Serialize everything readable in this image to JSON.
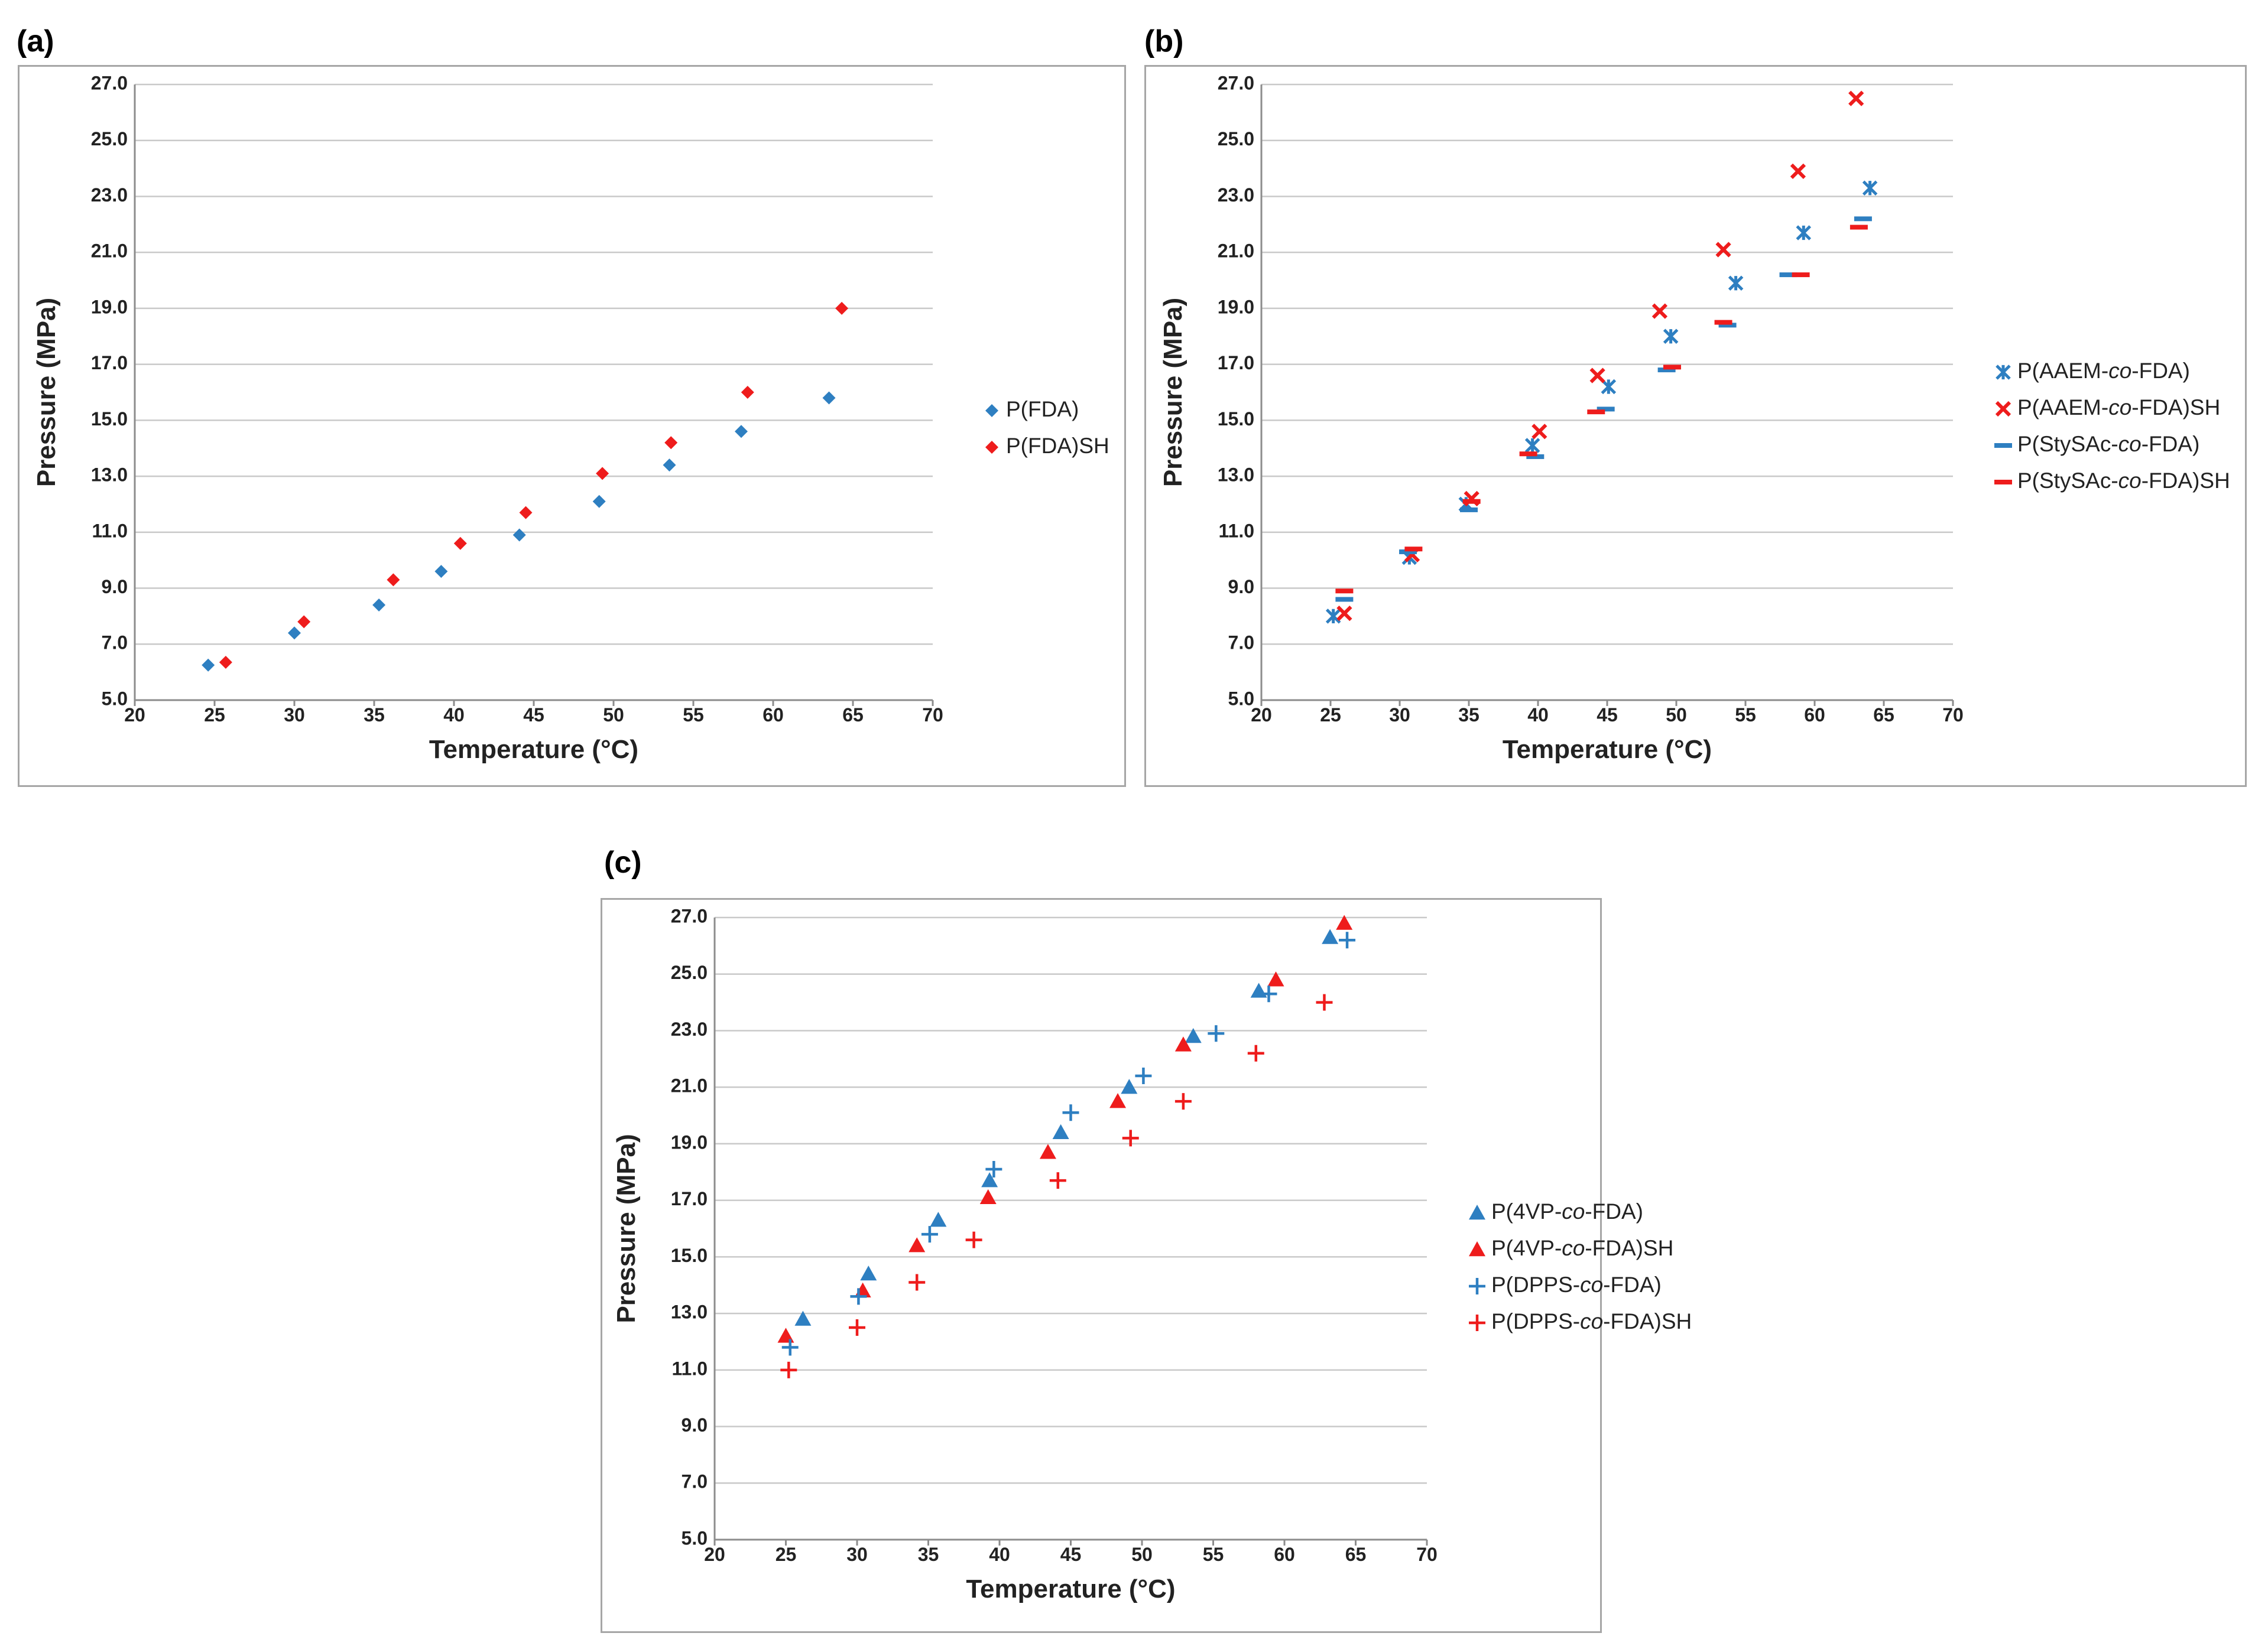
{
  "colors": {
    "blue": "#2e7fc1",
    "red": "#ee1c1c",
    "grid": "#c9c9c9",
    "axis": "#8c8c8c"
  },
  "panels": [
    {
      "label": "(a)",
      "chart_data": {
        "type": "scatter",
        "title": "",
        "xlabel": "Temperature (°C)",
        "ylabel": "Pressure (MPa)",
        "xlim": [
          20,
          70
        ],
        "ylim": [
          5,
          27
        ],
        "xticks": [
          20,
          25,
          30,
          35,
          40,
          45,
          50,
          55,
          60,
          65,
          70
        ],
        "yticks": [
          "5.0",
          "7.0",
          "9.0",
          "11.0",
          "13.0",
          "15.0",
          "17.0",
          "19.0",
          "21.0",
          "23.0",
          "25.0",
          "27.0"
        ],
        "grid": true,
        "legend_position": "right",
        "series": [
          {
            "name": "P(FDA)",
            "marker": "diamond",
            "color": "blue",
            "points": [
              [
                24.6,
                6.25
              ],
              [
                30.0,
                7.4
              ],
              [
                35.3,
                8.4
              ],
              [
                39.2,
                9.6
              ],
              [
                44.1,
                10.9
              ],
              [
                49.1,
                12.1
              ],
              [
                53.5,
                13.4
              ],
              [
                58.0,
                14.6
              ],
              [
                63.5,
                15.8
              ]
            ]
          },
          {
            "name": "P(FDA)SH",
            "marker": "diamond",
            "color": "red",
            "points": [
              [
                25.7,
                6.35
              ],
              [
                30.6,
                7.8
              ],
              [
                36.2,
                9.3
              ],
              [
                40.4,
                10.6
              ],
              [
                44.5,
                11.7
              ],
              [
                49.3,
                13.1
              ],
              [
                53.6,
                14.2
              ],
              [
                58.4,
                16.0
              ],
              [
                64.3,
                19.0
              ]
            ]
          }
        ]
      }
    },
    {
      "label": "(b)",
      "chart_data": {
        "type": "scatter",
        "title": "",
        "xlabel": "Temperature (°C)",
        "ylabel": "Pressure (MPa)",
        "xlim": [
          20,
          70
        ],
        "ylim": [
          5,
          27
        ],
        "xticks": [
          20,
          25,
          30,
          35,
          40,
          45,
          50,
          55,
          60,
          65,
          70
        ],
        "yticks": [
          "5.0",
          "7.0",
          "9.0",
          "11.0",
          "13.0",
          "15.0",
          "17.0",
          "19.0",
          "21.0",
          "23.0",
          "25.0",
          "27.0"
        ],
        "grid": true,
        "legend_position": "right",
        "series": [
          {
            "name": "P(AAEM-co-FDA)",
            "marker": "asterisk",
            "color": "blue",
            "points": [
              [
                25.2,
                8.0
              ],
              [
                30.7,
                10.1
              ],
              [
                34.8,
                12.0
              ],
              [
                39.6,
                14.1
              ],
              [
                45.1,
                16.2
              ],
              [
                49.6,
                18.0
              ],
              [
                54.3,
                19.9
              ],
              [
                59.2,
                21.7
              ],
              [
                64.0,
                23.3
              ]
            ]
          },
          {
            "name": "P(AAEM-co-FDA)SH",
            "marker": "x",
            "color": "red",
            "points": [
              [
                26.0,
                8.1
              ],
              [
                30.9,
                10.2
              ],
              [
                35.2,
                12.2
              ],
              [
                40.1,
                14.6
              ],
              [
                44.3,
                16.6
              ],
              [
                48.8,
                18.9
              ],
              [
                53.4,
                21.1
              ],
              [
                58.8,
                23.9
              ],
              [
                63.0,
                26.5
              ]
            ]
          },
          {
            "name": "P(StySAc-co-FDA)",
            "marker": "dash",
            "color": "blue",
            "points": [
              [
                26.0,
                8.6
              ],
              [
                30.6,
                10.3
              ],
              [
                35.0,
                11.8
              ],
              [
                39.8,
                13.7
              ],
              [
                44.9,
                15.4
              ],
              [
                49.3,
                16.8
              ],
              [
                53.7,
                18.4
              ],
              [
                58.1,
                20.2
              ],
              [
                63.5,
                22.2
              ]
            ]
          },
          {
            "name": "P(StySAc-co-FDA)SH",
            "marker": "dash",
            "color": "red",
            "points": [
              [
                26.0,
                8.9
              ],
              [
                31.0,
                10.4
              ],
              [
                35.2,
                12.1
              ],
              [
                39.3,
                13.8
              ],
              [
                44.2,
                15.3
              ],
              [
                49.7,
                16.9
              ],
              [
                53.4,
                18.5
              ],
              [
                59.0,
                20.2
              ],
              [
                63.2,
                21.9
              ]
            ]
          }
        ]
      }
    },
    {
      "label": "(c)",
      "chart_data": {
        "type": "scatter",
        "title": "",
        "xlabel": "Temperature (°C)",
        "ylabel": "Pressure (MPa)",
        "xlim": [
          20,
          70
        ],
        "ylim": [
          5,
          27
        ],
        "xticks": [
          20,
          25,
          30,
          35,
          40,
          45,
          50,
          55,
          60,
          65,
          70
        ],
        "yticks": [
          "5.0",
          "7.0",
          "9.0",
          "11.0",
          "13.0",
          "15.0",
          "17.0",
          "19.0",
          "21.0",
          "23.0",
          "25.0",
          "27.0"
        ],
        "grid": true,
        "legend_position": "right",
        "series": [
          {
            "name": "P(4VP-co-FDA)",
            "marker": "triangle",
            "color": "blue",
            "points": [
              [
                26.2,
                12.8
              ],
              [
                30.8,
                14.4
              ],
              [
                35.7,
                16.3
              ],
              [
                39.3,
                17.7
              ],
              [
                44.3,
                19.4
              ],
              [
                49.1,
                21.0
              ],
              [
                53.6,
                22.8
              ],
              [
                58.2,
                24.4
              ],
              [
                63.2,
                26.3
              ]
            ]
          },
          {
            "name": "P(4VP-co-FDA)SH",
            "marker": "triangle",
            "color": "red",
            "points": [
              [
                25.0,
                12.2
              ],
              [
                30.4,
                13.8
              ],
              [
                34.2,
                15.4
              ],
              [
                39.2,
                17.1
              ],
              [
                43.4,
                18.7
              ],
              [
                48.3,
                20.5
              ],
              [
                52.9,
                22.5
              ],
              [
                59.4,
                24.8
              ],
              [
                64.2,
                26.8
              ]
            ]
          },
          {
            "name": "P(DPPS-co-FDA)",
            "marker": "plus",
            "color": "blue",
            "points": [
              [
                25.3,
                11.8
              ],
              [
                30.1,
                13.6
              ],
              [
                35.1,
                15.8
              ],
              [
                39.6,
                18.1
              ],
              [
                45.0,
                20.1
              ],
              [
                50.1,
                21.4
              ],
              [
                55.2,
                22.9
              ],
              [
                58.9,
                24.3
              ],
              [
                64.4,
                26.2
              ]
            ]
          },
          {
            "name": "P(DPPS-co-FDA)SH",
            "marker": "plus",
            "color": "red",
            "points": [
              [
                25.2,
                11.0
              ],
              [
                30.0,
                12.5
              ],
              [
                34.2,
                14.1
              ],
              [
                38.2,
                15.6
              ],
              [
                44.1,
                17.7
              ],
              [
                49.2,
                19.2
              ],
              [
                52.9,
                20.5
              ],
              [
                58.0,
                22.2
              ],
              [
                62.8,
                24.0
              ]
            ]
          }
        ]
      }
    }
  ]
}
